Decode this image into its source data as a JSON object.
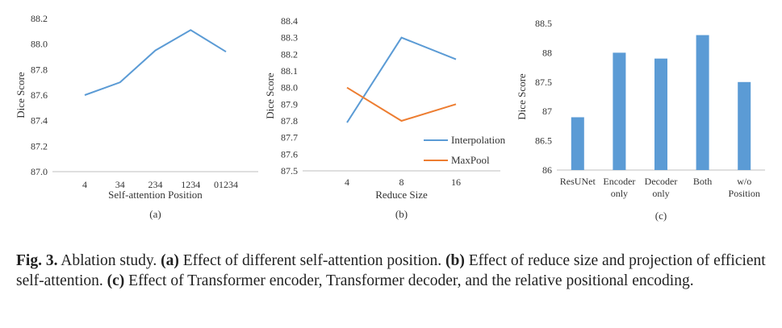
{
  "chart_data": [
    {
      "type": "line",
      "xlabel": "Self-attention Position",
      "ylabel": "Dice Score",
      "categories": [
        "4",
        "34",
        "234",
        "1234",
        "01234"
      ],
      "ylim": [
        87.0,
        88.2
      ],
      "yticks": [
        "87.0",
        "87.2",
        "87.4",
        "87.6",
        "87.8",
        "88.0",
        "88.2"
      ],
      "series": [
        {
          "values": [
            87.6,
            87.7,
            87.95,
            88.11,
            87.94
          ],
          "color": "#5b9bd5"
        }
      ],
      "sublabel": "(a)",
      "grid": false
    },
    {
      "type": "line",
      "xlabel": "Reduce Size",
      "ylabel": "Dice Score",
      "categories": [
        "4",
        "8",
        "16"
      ],
      "ylim": [
        87.5,
        88.4
      ],
      "yticks": [
        "87.5",
        "87.6",
        "87.7",
        "87.8",
        "87.9",
        "88.0",
        "88.1",
        "88.2",
        "88.3",
        "88.4"
      ],
      "series": [
        {
          "name": "Interpolation",
          "values": [
            87.79,
            88.3,
            88.17
          ],
          "color": "#5b9bd5"
        },
        {
          "name": "MaxPool",
          "values": [
            88.0,
            87.8,
            87.9
          ],
          "color": "#ed7d31"
        }
      ],
      "legend": "bottom-right",
      "sublabel": "(b)",
      "grid": false
    },
    {
      "type": "bar",
      "ylabel": "Dice Score",
      "categories": [
        [
          "ResUNet"
        ],
        [
          "Encoder",
          "only"
        ],
        [
          "Decoder",
          "only"
        ],
        [
          "Both"
        ],
        [
          "w/o",
          "Position"
        ]
      ],
      "values": [
        86.9,
        88.0,
        87.9,
        88.3,
        87.5
      ],
      "ylim": [
        86,
        88.5
      ],
      "yticks": [
        "86",
        "86.5",
        "87",
        "87.5",
        "88",
        "88.5"
      ],
      "color": "#5b9bd5",
      "sublabel": "(c)",
      "grid": false
    }
  ],
  "caption": {
    "fig_label": "Fig. 3.",
    "title": "Ablation study.",
    "part_a_label": "(a)",
    "part_a_text": "Effect of different self-attention position.",
    "part_b_label": "(b)",
    "part_b_text": "Effect of reduce size and projection of efficient self-attention.",
    "part_c_label": "(c)",
    "part_c_text": "Effect of Transformer encoder, Transformer decoder, and the relative positional encoding."
  }
}
